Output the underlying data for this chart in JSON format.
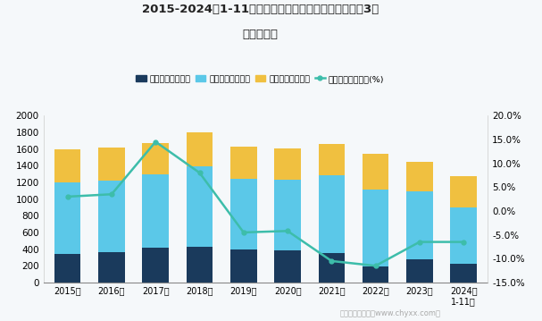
{
  "title_line1": "2015-2024年1-11月石油、煮炭及其他燃料加工业企业3类",
  "title_line2": "费用统计图",
  "years": [
    "2015年",
    "2016年",
    "2017年",
    "2018年",
    "2019年",
    "2020年",
    "2021年",
    "2022年",
    "2023年",
    "2024年\n1-11月"
  ],
  "sales_cost": [
    340,
    360,
    415,
    430,
    400,
    380,
    350,
    195,
    275,
    225
  ],
  "mgmt_cost": [
    855,
    860,
    885,
    965,
    845,
    850,
    930,
    920,
    815,
    675
  ],
  "finance_cost": [
    405,
    400,
    375,
    400,
    378,
    375,
    378,
    425,
    358,
    375
  ],
  "growth_rate": [
    3.0,
    3.5,
    14.5,
    8.0,
    -4.5,
    -4.2,
    -10.5,
    -11.5,
    -6.5,
    -6.5
  ],
  "bar_color_sales": "#1a3a5c",
  "bar_color_mgmt": "#5bc8e8",
  "bar_color_finance": "#f0c040",
  "line_color": "#3dbdaa",
  "bg_color": "#f5f8fa",
  "plot_bg_color": "#f5f8fa",
  "ylim_left": [
    0,
    2000
  ],
  "ylim_right": [
    -15.0,
    20.0
  ],
  "left_yticks": [
    0,
    200,
    400,
    600,
    800,
    1000,
    1200,
    1400,
    1600,
    1800,
    2000
  ],
  "right_yticks": [
    -15.0,
    -10.0,
    -5.0,
    0.0,
    5.0,
    10.0,
    15.0,
    20.0
  ],
  "legend_label_sales": "销售费用（亿元）",
  "legend_label_mgmt": "管理费用（亿元）",
  "legend_label_finance": "财务费用（亿元）",
  "legend_label_growth": "销售费用累计增长(%)",
  "watermark": "制图：智研咋询（www.chyxx.com）"
}
